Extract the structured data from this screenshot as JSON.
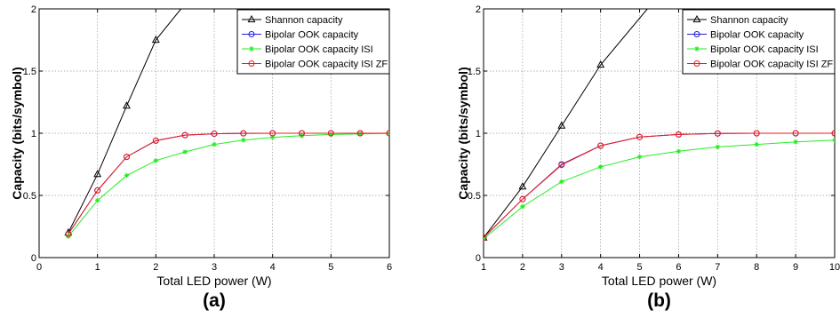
{
  "colors": {
    "shannon": "#000000",
    "bipolar": "#1f1fd8",
    "isi": "#22ee22",
    "isi_zf": "#ee1c1c",
    "grid": "#9a9a9a"
  },
  "chart_data": [
    {
      "type": "line",
      "panel_label": "(a)",
      "xlabel": "Total LED power (W)",
      "ylabel": "Capacity (bits/symbol)",
      "xlim": [
        0,
        6
      ],
      "ylim": [
        0,
        2
      ],
      "xticks": [
        0,
        1,
        2,
        3,
        4,
        5,
        6
      ],
      "yticks": [
        0,
        0.5,
        1,
        1.5,
        2
      ],
      "xtick_labels": [
        "0",
        "1",
        "2",
        "3",
        "4",
        "5",
        "6"
      ],
      "ytick_labels": [
        "0",
        "0.5",
        "1",
        "1.5",
        "2"
      ],
      "grid": true,
      "legend_position": "top-right",
      "series": [
        {
          "name": "Shannon capacity",
          "color_key": "shannon",
          "marker": "triangle",
          "x": [
            0.5,
            1,
            1.5,
            2,
            2.43
          ],
          "y": [
            0.2,
            0.67,
            1.22,
            1.75,
            2.0
          ],
          "marker_count": 4
        },
        {
          "name": "Bipolar OOK capacity",
          "color_key": "bipolar",
          "marker": "circle",
          "x": [
            0.5,
            1,
            1.5,
            2,
            2.5,
            3,
            3.5,
            4,
            4.5,
            5,
            5.5,
            6
          ],
          "y": [
            0.19,
            0.54,
            0.81,
            0.94,
            0.985,
            0.996,
            0.999,
            1.0,
            1.0,
            1.0,
            1.0,
            1.0
          ]
        },
        {
          "name": "Bipolar OOK capacity ISI",
          "color_key": "isi",
          "marker": "star",
          "x": [
            0.5,
            1,
            1.5,
            2,
            2.5,
            3,
            3.5,
            4,
            4.5,
            5,
            5.5,
            6
          ],
          "y": [
            0.17,
            0.46,
            0.66,
            0.78,
            0.85,
            0.91,
            0.945,
            0.967,
            0.98,
            0.99,
            0.995,
            0.998
          ]
        },
        {
          "name": "Bipolar OOK capacity ISI ZF",
          "color_key": "isi_zf",
          "marker": "circle",
          "x": [
            0.5,
            1,
            1.5,
            2,
            2.5,
            3,
            3.5,
            4,
            4.5,
            5,
            5.5,
            6
          ],
          "y": [
            0.19,
            0.54,
            0.81,
            0.94,
            0.985,
            0.996,
            0.999,
            1.0,
            1.0,
            1.0,
            1.0,
            1.0
          ]
        }
      ]
    },
    {
      "type": "line",
      "panel_label": "(b)",
      "xlabel": "Total LED power (W)",
      "ylabel": "Capacity (bits/symbol)",
      "xlim": [
        1,
        10
      ],
      "ylim": [
        0,
        2
      ],
      "xticks": [
        1,
        2,
        3,
        4,
        5,
        6,
        7,
        8,
        9,
        10
      ],
      "yticks": [
        0,
        0.5,
        1,
        1.5,
        2
      ],
      "xtick_labels": [
        "1",
        "2",
        "3",
        "4",
        "5",
        "6",
        "7",
        "8",
        "9",
        "10"
      ],
      "ytick_labels": [
        "0",
        "0.5",
        "1",
        "1.5",
        "2"
      ],
      "grid": true,
      "legend_position": "top-right",
      "series": [
        {
          "name": "Shannon capacity",
          "color_key": "shannon",
          "marker": "triangle",
          "x": [
            1,
            2,
            3,
            4,
            5.2
          ],
          "y": [
            0.16,
            0.57,
            1.06,
            1.55,
            2.0
          ],
          "marker_count": 4
        },
        {
          "name": "Bipolar OOK capacity",
          "color_key": "bipolar",
          "marker": "circle",
          "x": [
            1,
            2,
            3,
            4,
            5,
            6,
            7,
            8,
            9,
            10
          ],
          "y": [
            0.16,
            0.47,
            0.75,
            0.9,
            0.97,
            0.99,
            0.998,
            1.0,
            1.0,
            1.0
          ]
        },
        {
          "name": "Bipolar OOK capacity ISI",
          "color_key": "isi",
          "marker": "star",
          "x": [
            1,
            2,
            3,
            4,
            5,
            6,
            7,
            8,
            9,
            10
          ],
          "y": [
            0.15,
            0.41,
            0.61,
            0.73,
            0.81,
            0.855,
            0.89,
            0.91,
            0.93,
            0.945
          ]
        },
        {
          "name": "Bipolar OOK capacity ISI ZF",
          "color_key": "isi_zf",
          "marker": "circle",
          "x": [
            1,
            2,
            3,
            4,
            5,
            6,
            7,
            8,
            9,
            10
          ],
          "y": [
            0.16,
            0.47,
            0.745,
            0.9,
            0.97,
            0.99,
            0.998,
            1.0,
            1.0,
            1.0
          ]
        }
      ]
    }
  ]
}
